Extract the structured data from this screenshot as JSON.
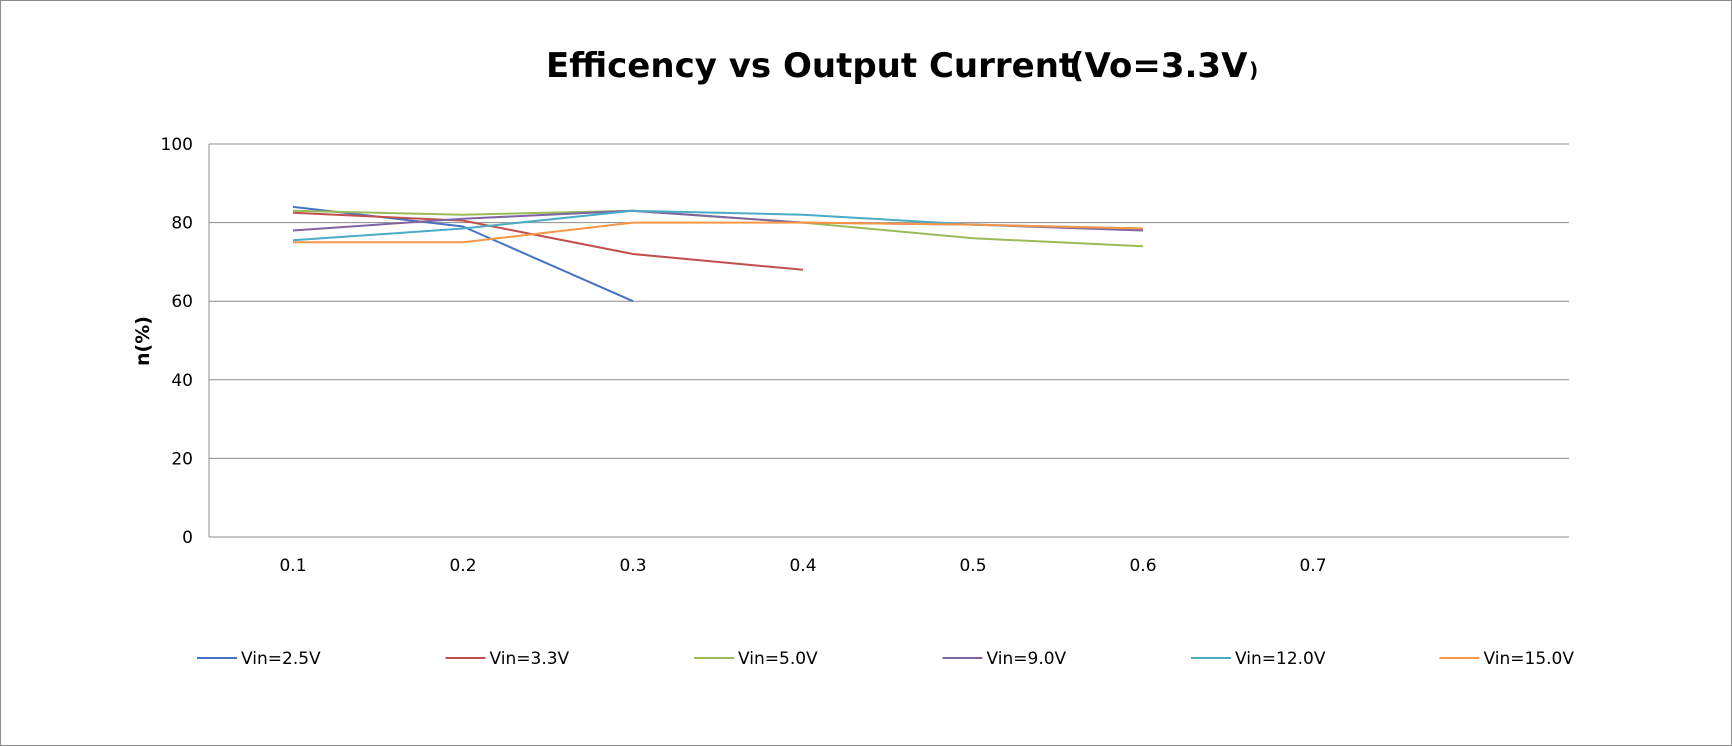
{
  "chart_data": {
    "type": "line",
    "title": "Efficency vs Output Current",
    "title_suffix": "(Vo=3.3V",
    "title_suffix_close": ")",
    "xlabel": "",
    "ylabel": "n(%)",
    "x": [
      0.1,
      0.2,
      0.3,
      0.4,
      0.5,
      0.6,
      0.7
    ],
    "x_tick_labels": [
      "0.1",
      "0.2",
      "0.3",
      "0.4",
      "0.5",
      "0.6",
      "0.7"
    ],
    "ylim": [
      0,
      100
    ],
    "y_ticks": [
      0,
      20,
      40,
      60,
      80,
      100
    ],
    "grid": "horizontal",
    "legend_position": "bottom",
    "series": [
      {
        "name": "Vin=2.5V",
        "color": "#4472C4",
        "values": [
          84,
          79,
          60,
          null,
          null,
          null,
          null
        ]
      },
      {
        "name": "Vin=3.3V",
        "color": "#C0504D",
        "values": [
          82.5,
          80.5,
          72,
          68,
          null,
          null,
          null
        ]
      },
      {
        "name": "Vin=5.0V",
        "color": "#9BBB59",
        "values": [
          83,
          82,
          83,
          80,
          76,
          74,
          null
        ]
      },
      {
        "name": "Vin=9.0V",
        "color": "#8064A2",
        "values": [
          78,
          81,
          83,
          80,
          79.5,
          78,
          null
        ]
      },
      {
        "name": "Vin=12.0V",
        "color": "#4BACC6",
        "values": [
          75.5,
          78.5,
          83,
          82,
          79.5,
          78.5,
          null
        ]
      },
      {
        "name": "Vin=15.0V",
        "color": "#F79646",
        "values": [
          75,
          75,
          80,
          80,
          79.5,
          78.5,
          null
        ]
      }
    ]
  }
}
